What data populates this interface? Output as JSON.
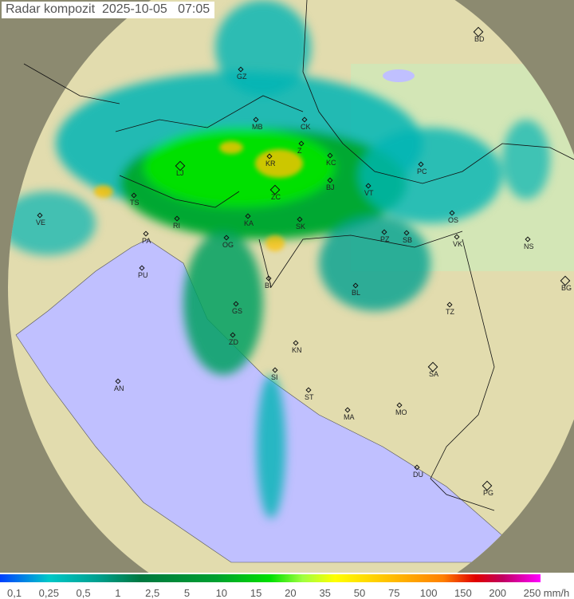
{
  "title": "Radar kompozit  2025-10-05   07:05",
  "legend": {
    "unit": "mm/h",
    "ticks": [
      "0,1",
      "0,25",
      "0,5",
      "1",
      "2,5",
      "5",
      "10",
      "15",
      "20",
      "35",
      "50",
      "75",
      "100",
      "150",
      "200",
      "250"
    ]
  },
  "cities": [
    "BD",
    "GZ",
    "MB",
    "CK",
    "KR",
    "Z",
    "KC",
    "LJ",
    "BJ",
    "VT",
    "PC",
    "TS",
    "ZC",
    "KA",
    "SK",
    "VE",
    "RI",
    "PA",
    "OG",
    "PZ",
    "SB",
    "OS",
    "VK",
    "NS",
    "PU",
    "BI",
    "BL",
    "BG",
    "TZ",
    "GS",
    "ZD",
    "KN",
    "SA",
    "SI",
    "AN",
    "ST",
    "MO",
    "MA",
    "DU",
    "PG"
  ],
  "colors": {
    "sea": "#c0c0ff",
    "land": "#e6e0b0",
    "outside": "#8c8c70",
    "echo_light": "#00b4b4",
    "echo_mid": "#00c040",
    "echo_heavy": "#ffc000"
  }
}
